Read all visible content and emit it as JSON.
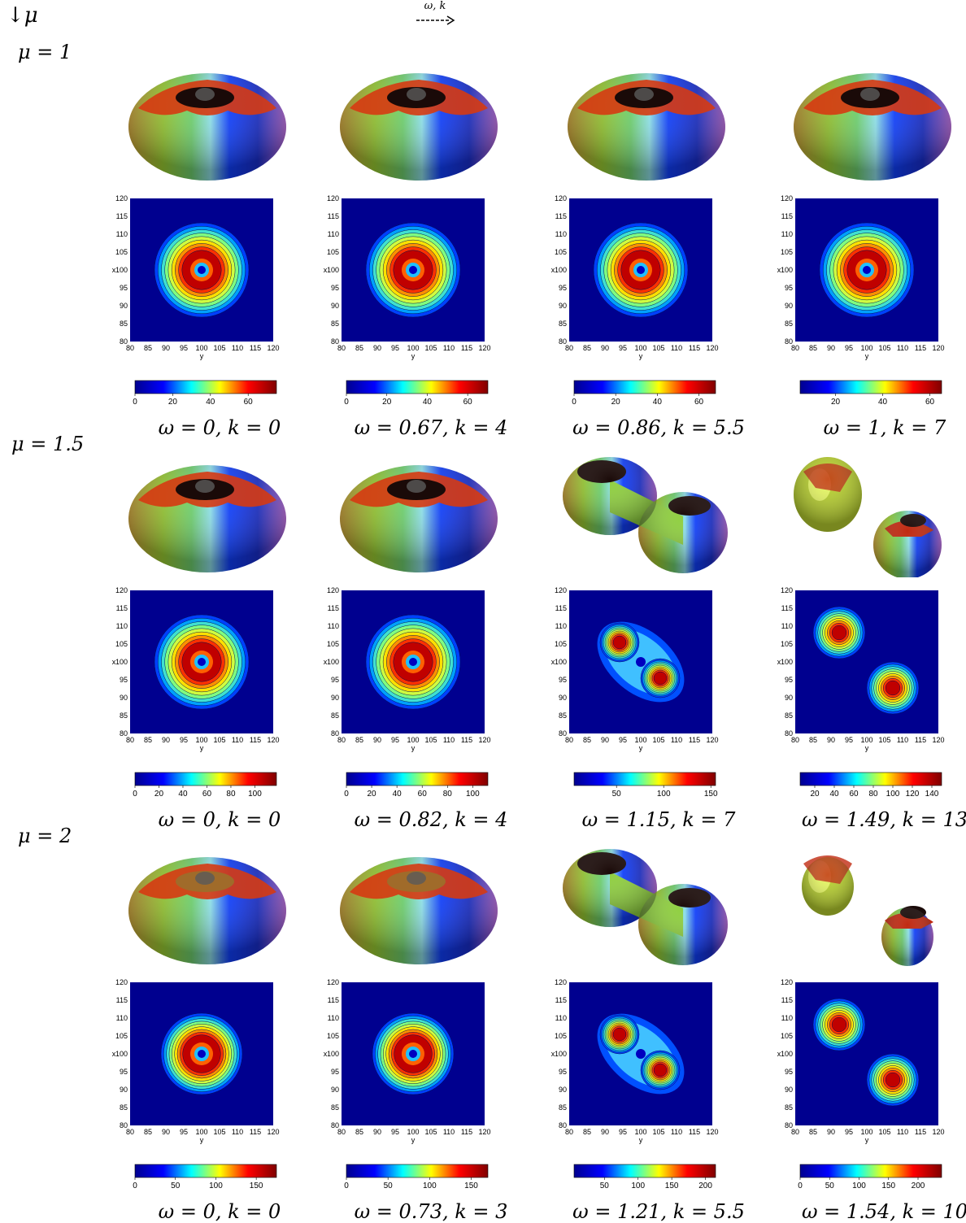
{
  "header": {
    "down_mu": "↓μ",
    "arrow_label": "ω, k"
  },
  "rows": [
    {
      "mu_label": "μ = 1",
      "panels": [
        {
          "caption": "ω = 0, k = 0",
          "shape": "torus",
          "cbar_ticks": [
            "0",
            "20",
            "40",
            "60"
          ],
          "tick_vals": [
            0,
            20,
            40,
            60
          ],
          "cbar_max": 75
        },
        {
          "caption": "ω = 0.67, k = 4",
          "shape": "torus",
          "cbar_ticks": [
            "0",
            "20",
            "40",
            "60"
          ],
          "tick_vals": [
            0,
            20,
            40,
            60
          ],
          "cbar_max": 70
        },
        {
          "caption": "ω = 0.86, k = 5.5",
          "shape": "torus",
          "cbar_ticks": [
            "0",
            "20",
            "40",
            "60"
          ],
          "tick_vals": [
            0,
            20,
            40,
            60
          ],
          "cbar_max": 68
        },
        {
          "caption": "ω = 1, k = 7",
          "shape": "torus",
          "cbar_ticks": [
            "20",
            "40",
            "60"
          ],
          "tick_vals": [
            20,
            40,
            60
          ],
          "cbar_min": 5,
          "cbar_max": 65
        }
      ]
    },
    {
      "mu_label": "μ = 1.5",
      "panels": [
        {
          "caption": "ω = 0, k = 0",
          "shape": "torus",
          "cbar_ticks": [
            "0",
            "20",
            "40",
            "60",
            "80",
            "100"
          ],
          "tick_vals": [
            0,
            20,
            40,
            60,
            80,
            100
          ],
          "cbar_max": 118
        },
        {
          "caption": "ω = 0.82, k = 4",
          "shape": "torus",
          "cbar_ticks": [
            "0",
            "20",
            "40",
            "60",
            "80",
            "100"
          ],
          "tick_vals": [
            0,
            20,
            40,
            60,
            80,
            100
          ],
          "cbar_max": 112
        },
        {
          "caption": "ω = 1.15, k = 7",
          "shape": "dumbbell",
          "cbar_ticks": [
            "50",
            "100",
            "150"
          ],
          "tick_vals": [
            50,
            100,
            150
          ],
          "cbar_min": 5,
          "cbar_max": 155
        },
        {
          "caption": "ω = 1.49, k = 13",
          "shape": "split",
          "cbar_ticks": [
            "20",
            "40",
            "60",
            "80",
            "100",
            "120",
            "140"
          ],
          "tick_vals": [
            20,
            40,
            60,
            80,
            100,
            120,
            140
          ],
          "cbar_min": 5,
          "cbar_max": 150
        }
      ]
    },
    {
      "mu_label": "μ = 2",
      "panels": [
        {
          "caption": "ω = 0, k = 0",
          "shape": "torus",
          "cbar_ticks": [
            "0",
            "50",
            "100",
            "150"
          ],
          "tick_vals": [
            0,
            50,
            100,
            150
          ],
          "cbar_max": 175
        },
        {
          "caption": "ω = 0.73, k = 3",
          "shape": "torus",
          "cbar_ticks": [
            "0",
            "50",
            "100",
            "150"
          ],
          "tick_vals": [
            0,
            50,
            100,
            150
          ],
          "cbar_max": 170
        },
        {
          "caption": "ω = 1.21, k = 5.5",
          "shape": "dumbbell",
          "cbar_ticks": [
            "50",
            "100",
            "150",
            "200"
          ],
          "tick_vals": [
            50,
            100,
            150,
            200
          ],
          "cbar_min": 5,
          "cbar_max": 215
        },
        {
          "caption": "ω = 1.54, k = 10",
          "shape": "split",
          "cbar_ticks": [
            "0",
            "50",
            "100",
            "150",
            "200"
          ],
          "tick_vals": [
            0,
            50,
            100,
            150,
            200
          ],
          "cbar_max": 240
        }
      ]
    }
  ],
  "axes": {
    "ticks": [
      "80",
      "85",
      "90",
      "95",
      "100",
      "105",
      "110",
      "115",
      "120"
    ],
    "x_label": "x",
    "y_label": "y"
  },
  "colors": {
    "field_bg": "#00008f",
    "jet": [
      "#00008f",
      "#0000ff",
      "#00ffff",
      "#ffff00",
      "#ff0000",
      "#800000"
    ]
  }
}
